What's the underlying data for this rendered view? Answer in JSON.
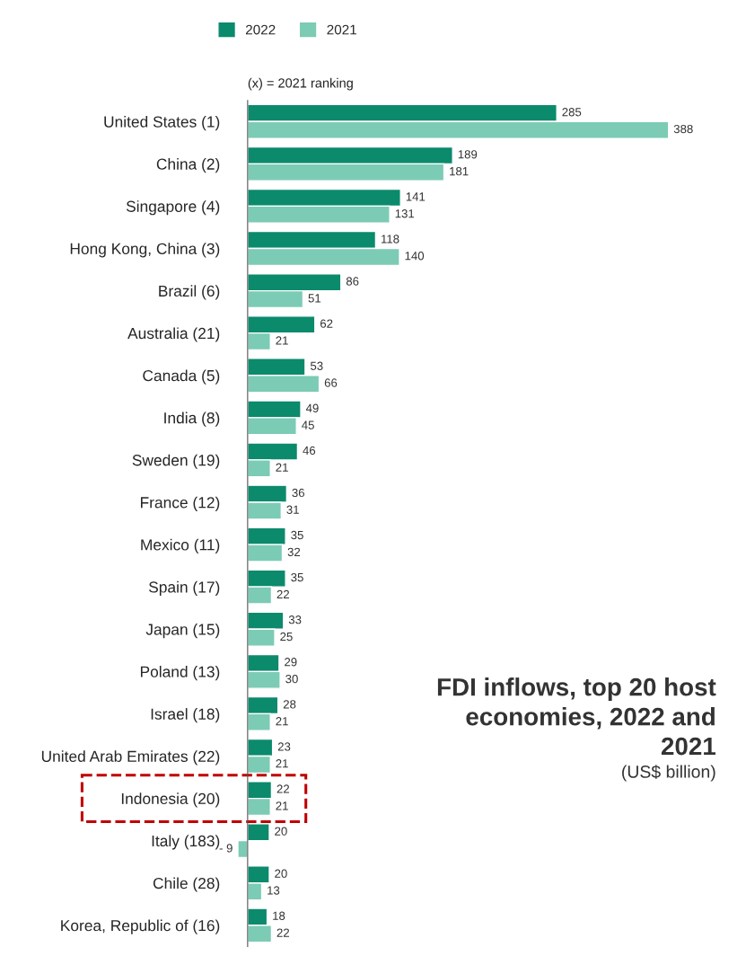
{
  "chart_data": {
    "type": "bar",
    "orientation": "horizontal",
    "title": "FDI inflows, top 20 host economies, 2022 and 2021",
    "subtitle": "(US$ billion)",
    "annotations": [
      "(x) = 2021 ranking"
    ],
    "categories": [
      "United States (1)",
      "China (2)",
      "Singapore (4)",
      "Hong Kong, China (3)",
      "Brazil (6)",
      "Australia (21)",
      "Canada (5)",
      "India (8)",
      "Sweden (19)",
      "France (12)",
      "Mexico (11)",
      "Spain (17)",
      "Japan (15)",
      "Poland (13)",
      "Israel (18)",
      "United Arab Emirates (22)",
      "Indonesia (20)",
      "Italy (183)",
      "Chile (28)",
      "Korea, Republic of (16)"
    ],
    "series": [
      {
        "name": "2022",
        "color": "#0b8a6c",
        "values": [
          285,
          189,
          141,
          118,
          86,
          62,
          53,
          49,
          46,
          36,
          35,
          35,
          33,
          29,
          28,
          23,
          22,
          20,
          20,
          18
        ],
        "value_labels": [
          "285",
          "189",
          "141",
          "118",
          "86",
          "62",
          "53",
          "49",
          "46",
          "36",
          "35",
          "35",
          "33",
          "29",
          "28",
          "23",
          "22",
          "20",
          "20",
          "18"
        ]
      },
      {
        "name": "2021",
        "color": "#7ccbb5",
        "values": [
          388,
          181,
          131,
          140,
          51,
          21,
          66,
          45,
          21,
          31,
          32,
          22,
          25,
          30,
          21,
          21,
          21,
          -9,
          13,
          22
        ],
        "value_labels": [
          "388",
          "181",
          "131",
          "140",
          "51",
          "21",
          "66",
          "45",
          "21",
          "31",
          "32",
          "22",
          "25",
          "30",
          "21",
          "21",
          "21",
          "- 9",
          "13",
          "22"
        ]
      }
    ],
    "tick_labels": "y",
    "legend": "top",
    "grid": false
  }
}
